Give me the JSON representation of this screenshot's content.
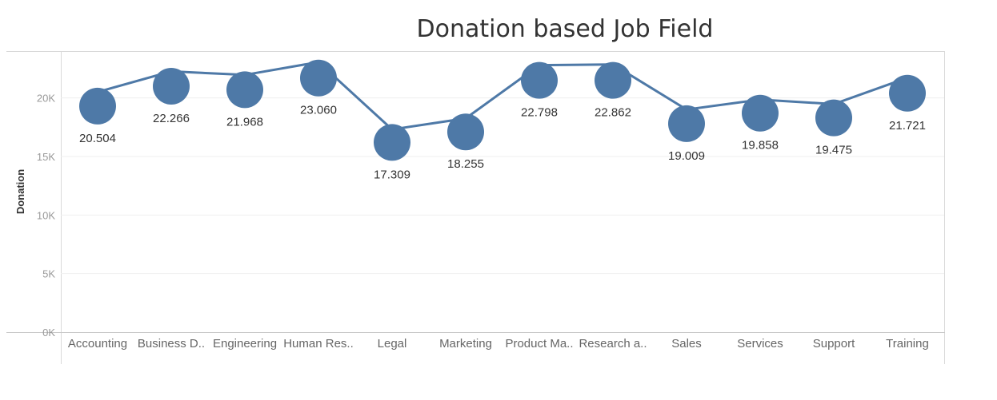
{
  "chart_data": {
    "type": "line",
    "title": "Donation based Job Field",
    "xlabel": "",
    "ylabel": "Donation",
    "ylim": [
      0,
      24000
    ],
    "grid": true,
    "categories": [
      "Accounting",
      "Business D..",
      "Engineering",
      "Human Res..",
      "Legal",
      "Marketing",
      "Product Ma..",
      "Research a..",
      "Sales",
      "Services",
      "Support",
      "Training"
    ],
    "values": [
      20504,
      22266,
      21968,
      23060,
      17309,
      18255,
      22798,
      22862,
      19009,
      19858,
      19475,
      21721
    ],
    "point_values": [
      19300,
      21000,
      20700,
      21700,
      16200,
      17100,
      21500,
      21500,
      17800,
      18700,
      18300,
      20400
    ],
    "data_labels": [
      "20.504",
      "22.266",
      "21.968",
      "23.060",
      "17.309",
      "18.255",
      "22.798",
      "22.862",
      "19.009",
      "19.858",
      "19.475",
      "21.721"
    ],
    "label_position": [
      "below",
      "below",
      "below",
      "below",
      "below",
      "below",
      "below",
      "below",
      "below",
      "below",
      "below",
      "below"
    ],
    "yticks": [
      {
        "v": 0,
        "label": "0K"
      },
      {
        "v": 5000,
        "label": "5K"
      },
      {
        "v": 10000,
        "label": "10K"
      },
      {
        "v": 15000,
        "label": "15K"
      },
      {
        "v": 20000,
        "label": "20K"
      }
    ],
    "colors": {
      "line": "#4e79a7",
      "marker": "#4e79a7"
    }
  }
}
